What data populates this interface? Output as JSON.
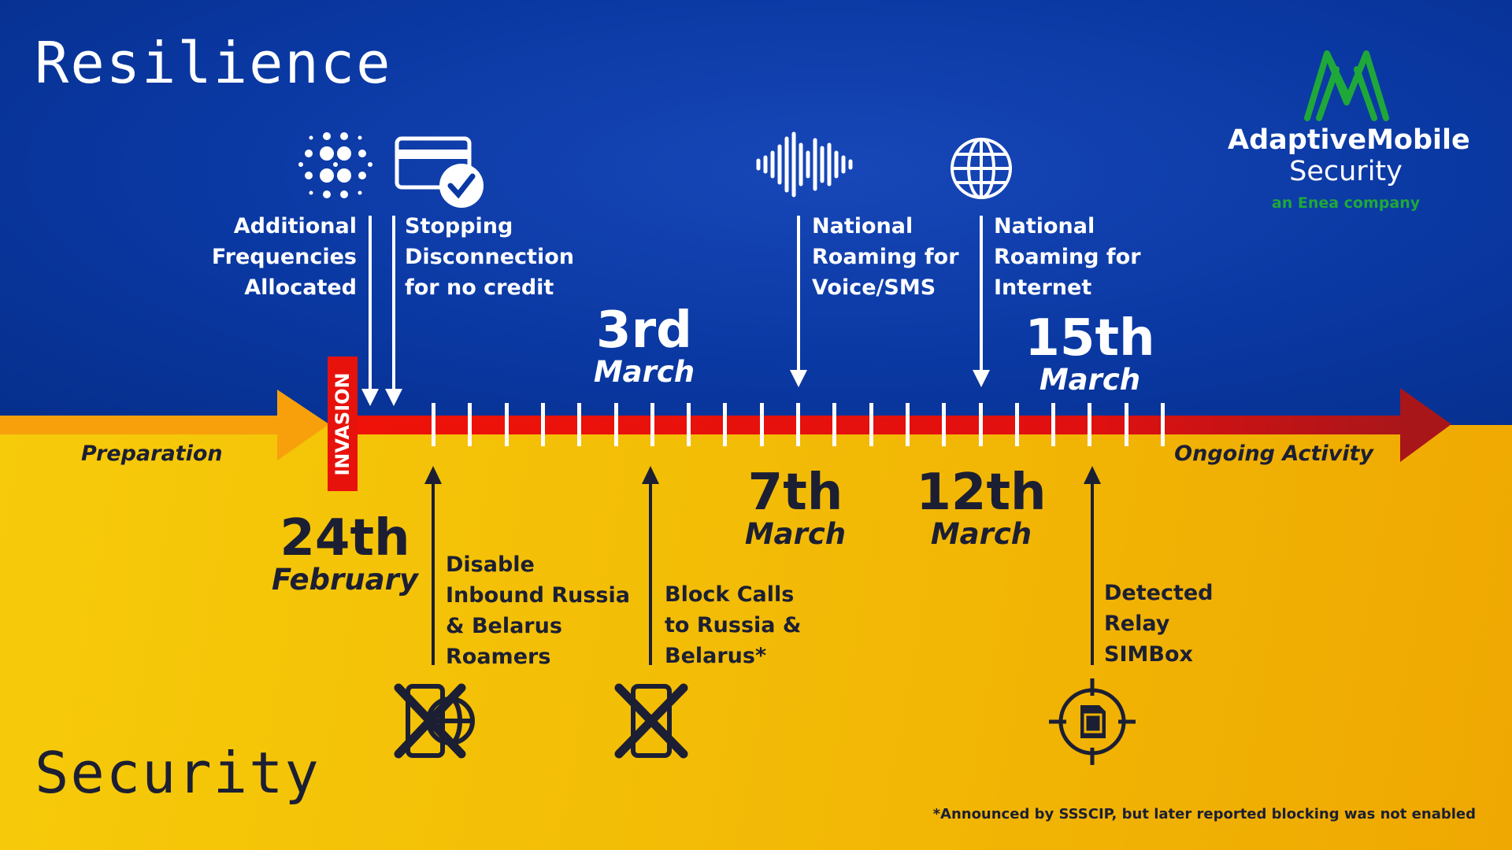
{
  "titles": {
    "top": "Resilience",
    "bottom": "Security"
  },
  "logo": {
    "name": "AdaptiveMobile",
    "sub": "Security",
    "tagline": "an Enea company",
    "color": "#1fa83a"
  },
  "timeline": {
    "before": "Preparation",
    "after": "Ongoing Activity",
    "invasion": "INVASION",
    "tick_count": 21,
    "colors": {
      "preparation": "#f7a00c",
      "timeline": "#e8120c",
      "blue": "#0a38a2",
      "yellow": "#f5c400"
    }
  },
  "dates": [
    {
      "num": "24th",
      "month": "February"
    },
    {
      "num": "3rd",
      "month": "March"
    },
    {
      "num": "7th",
      "month": "March"
    },
    {
      "num": "12th",
      "month": "March"
    },
    {
      "num": "15th",
      "month": "March"
    }
  ],
  "resilience_events": [
    {
      "lines": [
        "Additional",
        "Frequencies",
        "Allocated"
      ],
      "icon": "frequency-dots-icon"
    },
    {
      "lines": [
        "Stopping",
        "Disconnection",
        "for no credit"
      ],
      "icon": "credit-card-check-icon"
    },
    {
      "lines": [
        "National",
        "Roaming for",
        "Voice/SMS"
      ],
      "icon": "sound-wave-icon"
    },
    {
      "lines": [
        "National",
        "Roaming for",
        "Internet"
      ],
      "icon": "globe-icon"
    }
  ],
  "security_events": [
    {
      "lines": [
        "Disable",
        "Inbound Russia",
        "& Belarus",
        "Roamers"
      ],
      "icon": "phone-blocked-globe-icon"
    },
    {
      "lines": [
        "Block Calls",
        "to Russia &",
        "Belarus*"
      ],
      "icon": "phone-blocked-icon"
    },
    {
      "lines": [
        "Detected",
        "Relay",
        "SIMBox"
      ],
      "icon": "sim-target-icon"
    }
  ],
  "footnote": "*Announced by SSSCIP, but later reported blocking was not enabled"
}
